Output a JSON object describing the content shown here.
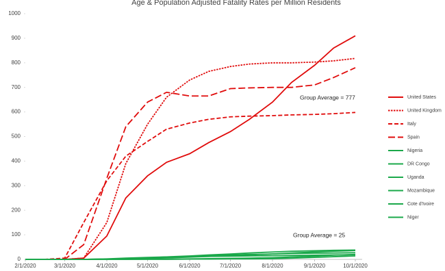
{
  "chart_data": {
    "type": "line",
    "title": "Age & Population Adjusted Fatality Rates per Million Residents",
    "annotations": [
      {
        "text": "Group Average = 777",
        "value": 777
      },
      {
        "text": "Group Average = 25",
        "value": 25
      }
    ],
    "x": [
      "2/1/2020",
      "2/15/2020",
      "3/1/2020",
      "3/15/2020",
      "4/1/2020",
      "4/15/2020",
      "5/1/2020",
      "5/15/2020",
      "6/1/2020",
      "6/15/2020",
      "7/1/2020",
      "7/15/2020",
      "8/1/2020",
      "8/15/2020",
      "9/1/2020",
      "9/15/2020",
      "10/1/2020"
    ],
    "xticks": [
      "2/1/2020",
      "3/1/2020",
      "4/1/2020",
      "5/1/2020",
      "6/1/2020",
      "7/1/2020",
      "8/1/2020",
      "9/1/2020",
      "10/1/2020"
    ],
    "ylim": [
      0,
      1000
    ],
    "yticks": [
      0,
      100,
      200,
      300,
      400,
      500,
      600,
      700,
      800,
      900,
      1000
    ],
    "series": [
      {
        "name": "United States",
        "color": "#e00b0b",
        "dash": "solid",
        "values": [
          0,
          0,
          0,
          5,
          95,
          250,
          340,
          395,
          430,
          475,
          520,
          570,
          640,
          720,
          790,
          860,
          910
        ]
      },
      {
        "name": "United Kingdom",
        "color": "#e00b0b",
        "dash": "dotted",
        "values": [
          0,
          0,
          0,
          5,
          150,
          390,
          550,
          660,
          730,
          765,
          785,
          795,
          800,
          800,
          803,
          808,
          818
        ]
      },
      {
        "name": "Italy",
        "color": "#e00b0b",
        "dash": "dashed",
        "values": [
          0,
          0,
          5,
          150,
          320,
          420,
          480,
          530,
          555,
          570,
          580,
          583,
          585,
          588,
          590,
          593,
          598
        ]
      },
      {
        "name": "Spain",
        "color": "#e00b0b",
        "dash": "longdash",
        "values": [
          0,
          0,
          0,
          60,
          330,
          540,
          640,
          680,
          665,
          665,
          695,
          698,
          700,
          700,
          710,
          740,
          780
        ]
      },
      {
        "name": "Nigeria",
        "color": "#1aa84a",
        "dash": "solid",
        "values": [
          0,
          0,
          0,
          0,
          1,
          2,
          4,
          6,
          9,
          12,
          15,
          18,
          22,
          26,
          30,
          33,
          36
        ]
      },
      {
        "name": "DR Congo",
        "color": "#1aa84a",
        "dash": "solid",
        "values": [
          0,
          0,
          0,
          0,
          1,
          3,
          6,
          10,
          14,
          18,
          22,
          26,
          30,
          33,
          35,
          37,
          38
        ]
      },
      {
        "name": "Uganda",
        "color": "#1aa84a",
        "dash": "solid",
        "values": [
          0,
          0,
          0,
          0,
          0,
          0,
          0,
          0,
          1,
          1,
          2,
          2,
          3,
          5,
          8,
          11,
          14
        ]
      },
      {
        "name": "Mozambique",
        "color": "#1aa84a",
        "dash": "solid",
        "values": [
          0,
          0,
          0,
          0,
          0,
          0,
          1,
          1,
          2,
          3,
          4,
          5,
          7,
          10,
          13,
          17,
          20
        ]
      },
      {
        "name": "Cote d'Ivoire",
        "color": "#1aa84a",
        "dash": "solid",
        "values": [
          0,
          0,
          0,
          0,
          1,
          3,
          6,
          9,
          12,
          15,
          18,
          20,
          22,
          24,
          25,
          26,
          27
        ]
      },
      {
        "name": "Niger",
        "color": "#1aa84a",
        "dash": "solid",
        "values": [
          0,
          0,
          0,
          0,
          2,
          5,
          8,
          10,
          11,
          12,
          13,
          14,
          15,
          16,
          17,
          18,
          19
        ]
      }
    ]
  }
}
